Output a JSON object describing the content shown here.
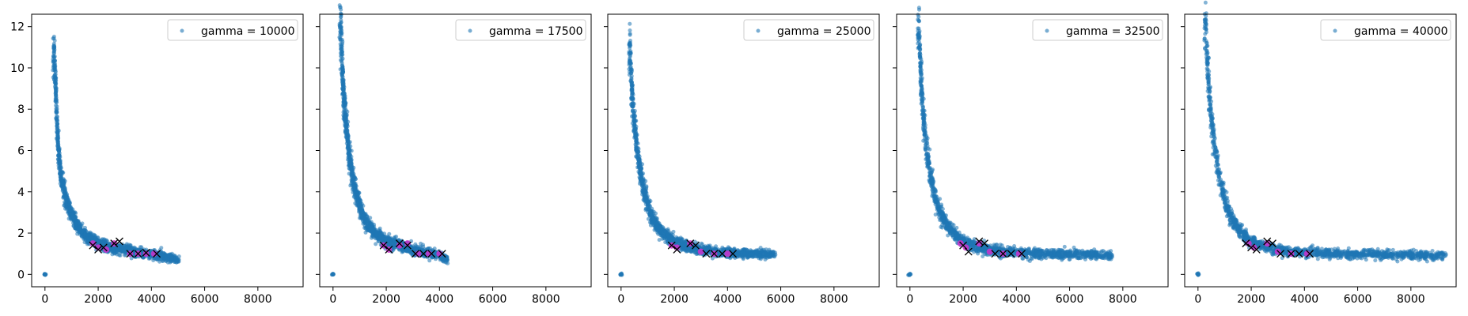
{
  "figure": {
    "background": "#ffffff"
  },
  "colors": {
    "scatter": "#1f77b4",
    "cluster": "#cc33cc",
    "marker_x": "#000000",
    "axes": "#000000"
  },
  "chart_data": [
    {
      "type": "scatter",
      "title": "",
      "xlabel": "",
      "ylabel": "",
      "xlim": [
        -500,
        9700
      ],
      "ylim": [
        -0.6,
        12.6
      ],
      "xticks": [
        "0",
        "2000",
        "4000",
        "6000",
        "8000"
      ],
      "yticks": [
        "0",
        "2",
        "4",
        "6",
        "8",
        "10",
        "12"
      ],
      "grid": false,
      "legend_loc": "upper right",
      "series": [
        {
          "name": "gamma = 10000",
          "points": [
            [
              0,
              0
            ],
            [
              350,
              10.5
            ],
            [
              400,
              9
            ],
            [
              450,
              7.5
            ],
            [
              500,
              6.2
            ],
            [
              600,
              4.8
            ],
            [
              800,
              3.6
            ],
            [
              1000,
              2.9
            ],
            [
              1200,
              2.4
            ],
            [
              1500,
              1.9
            ],
            [
              2000,
              1.5
            ],
            [
              2500,
              1.3
            ],
            [
              3000,
              1.2
            ],
            [
              3500,
              1.05
            ],
            [
              4000,
              1.0
            ],
            [
              4500,
              0.85
            ],
            [
              5000,
              0.7
            ]
          ]
        }
      ],
      "cluster_points": [
        [
          1800,
          1.5
        ],
        [
          2000,
          1.3
        ],
        [
          2300,
          1.2
        ],
        [
          2600,
          1.5
        ],
        [
          3200,
          1.0
        ],
        [
          3500,
          1.0
        ],
        [
          3800,
          1.0
        ],
        [
          4100,
          1.0
        ]
      ],
      "x_markers": [
        [
          1800,
          1.4
        ],
        [
          2000,
          1.2
        ],
        [
          2200,
          1.3
        ],
        [
          2600,
          1.5
        ],
        [
          2800,
          1.6
        ],
        [
          3200,
          1.0
        ],
        [
          3500,
          1.0
        ],
        [
          3800,
          1.05
        ],
        [
          4200,
          1.0
        ]
      ]
    },
    {
      "type": "scatter",
      "title": "",
      "xlabel": "",
      "ylabel": "",
      "xlim": [
        -500,
        9700
      ],
      "ylim": [
        -0.6,
        12.6
      ],
      "xticks": [
        "0",
        "2000",
        "4000",
        "6000",
        "8000"
      ],
      "yticks": [
        "0",
        "2",
        "4",
        "6",
        "8",
        "10",
        "12"
      ],
      "grid": false,
      "legend_loc": "upper right",
      "series": [
        {
          "name": "gamma = 17500",
          "points": [
            [
              0,
              0
            ],
            [
              300,
              11.9
            ],
            [
              350,
              10
            ],
            [
              400,
              8.5
            ],
            [
              500,
              7.2
            ],
            [
              600,
              5.8
            ],
            [
              800,
              4.3
            ],
            [
              1000,
              3.3
            ],
            [
              1200,
              2.6
            ],
            [
              1500,
              2.1
            ],
            [
              2000,
              1.6
            ],
            [
              2500,
              1.4
            ],
            [
              3000,
              1.2
            ],
            [
              3500,
              1.05
            ],
            [
              4000,
              0.9
            ],
            [
              4300,
              0.7
            ]
          ]
        }
      ],
      "cluster_points": [
        [
          1900,
          1.4
        ],
        [
          2100,
          1.2
        ],
        [
          2500,
          1.4
        ],
        [
          2800,
          1.5
        ],
        [
          3200,
          1.0
        ],
        [
          3600,
          1.0
        ],
        [
          4000,
          1.0
        ]
      ],
      "x_markers": [
        [
          1900,
          1.4
        ],
        [
          2100,
          1.2
        ],
        [
          2500,
          1.5
        ],
        [
          2800,
          1.4
        ],
        [
          3100,
          1.0
        ],
        [
          3400,
          1.0
        ],
        [
          3700,
          1.0
        ],
        [
          4100,
          1.0
        ]
      ]
    },
    {
      "type": "scatter",
      "title": "",
      "xlabel": "",
      "ylabel": "",
      "xlim": [
        -500,
        9700
      ],
      "ylim": [
        -0.6,
        12.6
      ],
      "xticks": [
        "0",
        "2000",
        "4000",
        "6000",
        "8000"
      ],
      "yticks": [
        "0",
        "2",
        "4",
        "6",
        "8",
        "10",
        "12"
      ],
      "grid": false,
      "legend_loc": "upper right",
      "series": [
        {
          "name": "gamma = 25000",
          "points": [
            [
              0,
              0
            ],
            [
              350,
              10.7
            ],
            [
              400,
              9
            ],
            [
              500,
              7.4
            ],
            [
              600,
              6
            ],
            [
              800,
              4.4
            ],
            [
              1000,
              3.4
            ],
            [
              1200,
              2.7
            ],
            [
              1500,
              2.1
            ],
            [
              2000,
              1.6
            ],
            [
              2500,
              1.35
            ],
            [
              3000,
              1.2
            ],
            [
              3500,
              1.1
            ],
            [
              4000,
              1.05
            ],
            [
              4500,
              1.0
            ],
            [
              5000,
              1.0
            ],
            [
              5500,
              0.98
            ],
            [
              5800,
              0.95
            ]
          ]
        }
      ],
      "cluster_points": [
        [
          1900,
          1.4
        ],
        [
          2100,
          1.3
        ],
        [
          2600,
          1.5
        ],
        [
          3000,
          1.1
        ],
        [
          3500,
          1.0
        ],
        [
          4000,
          1.0
        ]
      ],
      "x_markers": [
        [
          1900,
          1.4
        ],
        [
          2100,
          1.2
        ],
        [
          2600,
          1.5
        ],
        [
          2800,
          1.4
        ],
        [
          3200,
          1.0
        ],
        [
          3500,
          1.0
        ],
        [
          3800,
          1.0
        ],
        [
          4200,
          1.0
        ]
      ]
    },
    {
      "type": "scatter",
      "title": "",
      "xlabel": "",
      "ylabel": "",
      "xlim": [
        -500,
        9700
      ],
      "ylim": [
        -0.6,
        12.6
      ],
      "xticks": [
        "0",
        "2000",
        "4000",
        "6000",
        "8000"
      ],
      "yticks": [
        "0",
        "2",
        "4",
        "6",
        "8",
        "10",
        "12"
      ],
      "grid": false,
      "legend_loc": "upper right",
      "series": [
        {
          "name": "gamma = 32500",
          "points": [
            [
              0,
              0
            ],
            [
              350,
              11.7
            ],
            [
              400,
              9.8
            ],
            [
              500,
              7.8
            ],
            [
              600,
              6.3
            ],
            [
              800,
              4.6
            ],
            [
              1000,
              3.5
            ],
            [
              1200,
              2.8
            ],
            [
              1500,
              2.2
            ],
            [
              2000,
              1.6
            ],
            [
              2500,
              1.35
            ],
            [
              3000,
              1.2
            ],
            [
              3500,
              1.1
            ],
            [
              4000,
              1.05
            ],
            [
              5000,
              1.0
            ],
            [
              6000,
              0.98
            ],
            [
              7000,
              0.95
            ],
            [
              7600,
              0.93
            ]
          ]
        }
      ],
      "cluster_points": [
        [
          1900,
          1.5
        ],
        [
          2100,
          1.3
        ],
        [
          2600,
          1.5
        ],
        [
          3000,
          1.1
        ],
        [
          3500,
          1.0
        ],
        [
          4100,
          1.0
        ]
      ],
      "x_markers": [
        [
          2000,
          1.4
        ],
        [
          2200,
          1.1
        ],
        [
          2600,
          1.6
        ],
        [
          2800,
          1.5
        ],
        [
          3200,
          1.0
        ],
        [
          3500,
          1.0
        ],
        [
          3800,
          1.0
        ],
        [
          4200,
          1.0
        ]
      ]
    },
    {
      "type": "scatter",
      "title": "",
      "xlabel": "",
      "ylabel": "",
      "xlim": [
        -500,
        9700
      ],
      "ylim": [
        -0.6,
        12.6
      ],
      "xticks": [
        "0",
        "2000",
        "4000",
        "6000",
        "8000"
      ],
      "yticks": [
        "0",
        "2",
        "4",
        "6",
        "8",
        "10",
        "12"
      ],
      "grid": false,
      "legend_loc": "upper right",
      "series": [
        {
          "name": "gamma = 40000",
          "points": [
            [
              0,
              0
            ],
            [
              300,
              11.9
            ],
            [
              350,
              10.4
            ],
            [
              400,
              9.3
            ],
            [
              500,
              7.6
            ],
            [
              600,
              6.4
            ],
            [
              800,
              4.7
            ],
            [
              1000,
              3.6
            ],
            [
              1200,
              2.9
            ],
            [
              1500,
              2.2
            ],
            [
              2000,
              1.6
            ],
            [
              2500,
              1.35
            ],
            [
              3000,
              1.2
            ],
            [
              3500,
              1.1
            ],
            [
              4000,
              1.05
            ],
            [
              5000,
              1.0
            ],
            [
              6000,
              0.98
            ],
            [
              7000,
              0.95
            ],
            [
              8000,
              0.93
            ],
            [
              9300,
              0.9
            ]
          ]
        }
      ],
      "cluster_points": [
        [
          1900,
          1.5
        ],
        [
          2100,
          1.3
        ],
        [
          2600,
          1.5
        ],
        [
          3000,
          1.1
        ],
        [
          3500,
          1.0
        ],
        [
          4100,
          1.0
        ]
      ],
      "x_markers": [
        [
          1800,
          1.5
        ],
        [
          2000,
          1.3
        ],
        [
          2200,
          1.2
        ],
        [
          2600,
          1.6
        ],
        [
          2800,
          1.5
        ],
        [
          3100,
          1.0
        ],
        [
          3500,
          1.0
        ],
        [
          3800,
          1.0
        ],
        [
          4200,
          1.0
        ]
      ]
    }
  ]
}
